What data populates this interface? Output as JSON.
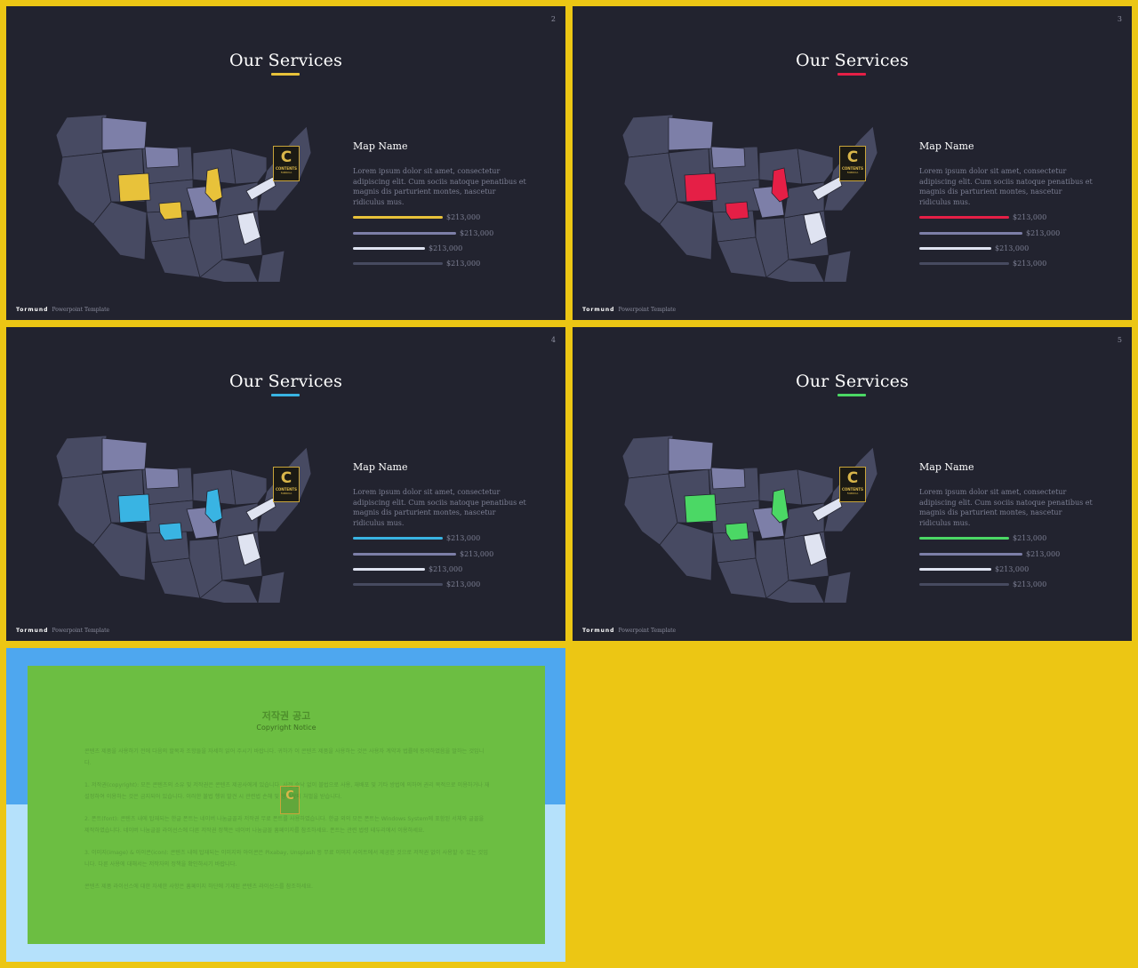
{
  "slides": [
    {
      "id": "slide-2",
      "number": "2",
      "title": "Our Services",
      "accent": "#e8c23a",
      "map_name": "Map Name",
      "description": "Lorem ipsum dolor sit amet, consectetur adipiscing elit. Cum sociis natoque penatibus et magnis dis parturient montes, nascetur ridiculus mus.",
      "bars": [
        {
          "value": "$213,000",
          "color": "#e8c23a",
          "level": 0.65
        },
        {
          "value": "$213,000",
          "color": "#7d7fa8",
          "level": 0.75
        },
        {
          "value": "$213,000",
          "color": "#dfe3f1",
          "level": 0.52
        },
        {
          "value": "$213,000",
          "color": "#474b60",
          "level": 0.65
        }
      ],
      "footer_brand": "Tormund",
      "footer_text": "Powerpoint Template"
    },
    {
      "id": "slide-3",
      "number": "3",
      "title": "Our Services",
      "accent": "#e51f46",
      "map_name": "Map Name",
      "description": "Lorem ipsum dolor sit amet, consectetur adipiscing elit. Cum sociis natoque penatibus et magnis dis parturient montes, nascetur ridiculus mus.",
      "bars": [
        {
          "value": "$213,000",
          "color": "#e51f46",
          "level": 0.65
        },
        {
          "value": "$213,000",
          "color": "#7d7fa8",
          "level": 0.75
        },
        {
          "value": "$213,000",
          "color": "#dfe3f1",
          "level": 0.52
        },
        {
          "value": "$213,000",
          "color": "#474b60",
          "level": 0.65
        }
      ],
      "footer_brand": "Tormund",
      "footer_text": "Powerpoint Template"
    },
    {
      "id": "slide-4",
      "number": "4",
      "title": "Our Services",
      "accent": "#39b4e3",
      "map_name": "Map Name",
      "description": "Lorem ipsum dolor sit amet, consectetur adipiscing elit. Cum sociis natoque penatibus et magnis dis parturient montes, nascetur ridiculus mus.",
      "bars": [
        {
          "value": "$213,000",
          "color": "#39b4e3",
          "level": 0.65
        },
        {
          "value": "$213,000",
          "color": "#7d7fa8",
          "level": 0.75
        },
        {
          "value": "$213,000",
          "color": "#dfe3f1",
          "level": 0.52
        },
        {
          "value": "$213,000",
          "color": "#474b60",
          "level": 0.65
        }
      ],
      "footer_brand": "Tormund",
      "footer_text": "Powerpoint Template"
    },
    {
      "id": "slide-5",
      "number": "5",
      "title": "Our Services",
      "accent": "#4bd865",
      "map_name": "Map Name",
      "description": "Lorem ipsum dolor sit amet, consectetur adipiscing elit. Cum sociis natoque penatibus et magnis dis parturient montes, nascetur ridiculus mus.",
      "bars": [
        {
          "value": "$213,000",
          "color": "#4bd865",
          "level": 0.65
        },
        {
          "value": "$213,000",
          "color": "#7d7fa8",
          "level": 0.75
        },
        {
          "value": "$213,000",
          "color": "#dfe3f1",
          "level": 0.52
        },
        {
          "value": "$213,000",
          "color": "#474b60",
          "level": 0.65
        }
      ],
      "footer_brand": "Tormund",
      "footer_text": "Powerpoint Template"
    }
  ],
  "logo": {
    "letter": "C",
    "line1": "CONTENTS",
    "line2": "FABRIKA"
  },
  "colors": {
    "background": "#ecc614",
    "slide_bg": "#22232f",
    "map_base": "#474a62",
    "map_mid": "#7d7fa8",
    "map_light": "#dfe3f1"
  },
  "copyright": {
    "title": "저작권 공고",
    "subtitle": "Copyright Notice",
    "paragraphs": [
      "콘텐츠 제품을 사용하기 전에 다음의 할목과 조항들을 자세히 읽어 주시기 바랍니다. 귀하가 이 콘텐츠 제품을 사용하는 것은 사용자 계약과 법률에 동의하였음을 말하는 것입니다.",
      "1. 저작권(copyright): 모든 콘텐츠의 소유 및 저작권은 콘텐츠 제공사에게 있습니다. 사전 승낙 없이 블법으로 사용, 재배포 및 기타 방법에 의하여 권리 목적으로 이용하거나 재설정하여 이용하는 것은 금지되어 있습니다. 이러한 불법 행위 발견 시 관련법 손해 및 형사상의 처벌을 받습니다.",
      "2. 폰트(font): 콘텐츠 내에 탑재되는 한글 폰트는 네이버 나눔글꼴과 저작권 무료 폰트를 사용하였습니다. 한글 외의 모든 폰트는 Windows System에 포함된 서체와 글꼴을 제작하였습니다. 네이버 나눔글꼴 라이선스에 다른 저작권 정책은 네이버 나눔글꼴 홈페이지를 참조하세요. 폰트는 관련 법령 테두리에서 이용하세요.",
      "3. 이미지(image) & 아이콘(icon): 콘텐츠 내에 탑재되는 이미지와 아이콘은 Pixabay, Unsplash 등 무료 이미지 사이트에서 제공한 것으로 저작권 없이 사용할 수 있는 것입니다. 다른 사용에 대해서는 저작자의 정책을 확인하시기 바랍니다.",
      "콘텐츠 제품 라이선스에 대한 자세한 사항은 홈페이지 하단에 기재된 콘텐츠 라이선스를 참조하세요."
    ]
  }
}
